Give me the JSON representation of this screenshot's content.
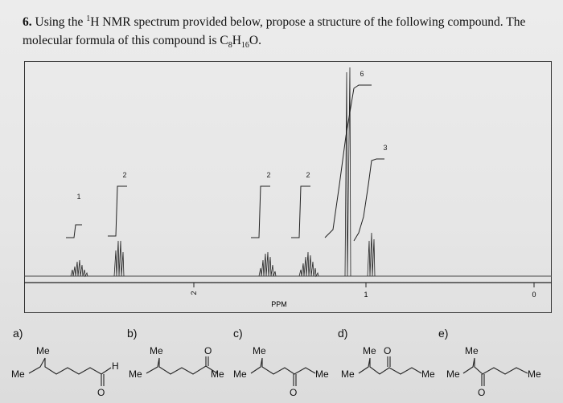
{
  "question": {
    "number": "6.",
    "line1_pre": " Using the ",
    "sup1": "1",
    "line1_post": "H NMR spectrum provided below, propose a structure of the following compound. The",
    "line2_pre": "molecular formula of this compound is C",
    "sub_c": "8",
    "mid_h": "H",
    "sub_h": "16",
    "line2_post": "O."
  },
  "spectrum": {
    "axis_label": "PPM",
    "ticks": [
      {
        "ppm": 2,
        "label": "2"
      },
      {
        "ppm": 1,
        "label": "1"
      },
      {
        "ppm": 0,
        "label": "0"
      }
    ],
    "integrations": [
      {
        "label": "1"
      },
      {
        "label": "2"
      },
      {
        "label": "2"
      },
      {
        "label": "2"
      },
      {
        "label": "6"
      },
      {
        "label": "3"
      }
    ]
  },
  "choices": [
    {
      "letter": "a)",
      "atoms": [
        "Me",
        "Me",
        "H",
        "O"
      ]
    },
    {
      "letter": "b)",
      "atoms": [
        "Me",
        "Me",
        "O",
        "Me"
      ]
    },
    {
      "letter": "c)",
      "atoms": [
        "Me",
        "Me",
        "O",
        "Me"
      ]
    },
    {
      "letter": "d)",
      "atoms": [
        "Me",
        "O",
        "Me",
        "Me"
      ]
    },
    {
      "letter": "e)",
      "atoms": [
        "Me",
        "Me",
        "O",
        "Me"
      ]
    }
  ]
}
